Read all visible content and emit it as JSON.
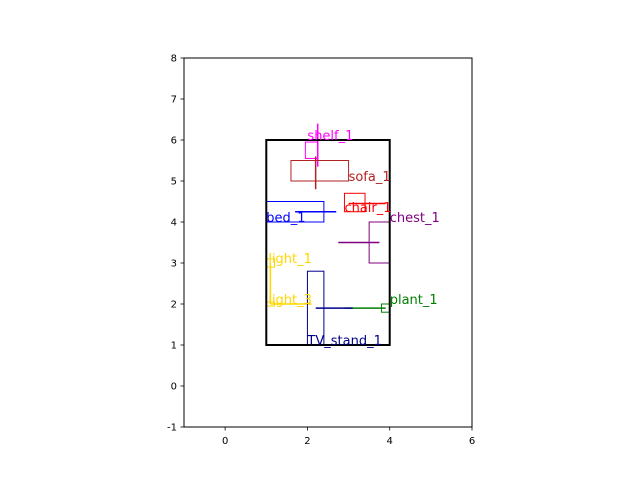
{
  "chart_data": {
    "type": "layout-plot",
    "xlim": [
      -1,
      6
    ],
    "ylim": [
      -1,
      8
    ],
    "x_ticks": [
      "0",
      "2",
      "4",
      "6"
    ],
    "x_tick_values": [
      0,
      2,
      4,
      6
    ],
    "y_ticks": [
      "-1",
      "0",
      "1",
      "2",
      "3",
      "4",
      "5",
      "6",
      "7",
      "8"
    ],
    "y_tick_values": [
      -1,
      0,
      1,
      2,
      3,
      4,
      5,
      6,
      7,
      8
    ],
    "room": {
      "x": 1,
      "y": 1,
      "w": 3,
      "h": 5,
      "color": "#000000"
    },
    "objects": [
      {
        "id": "shelf_1",
        "label": "shelf_1",
        "color": "#ff00ff",
        "rect": [
          1.95,
          5.55,
          0.3,
          0.4
        ],
        "line": [
          [
            2.25,
            6.4
          ],
          [
            2.25,
            5.35
          ]
        ],
        "label_at": [
          2.0,
          6.0
        ]
      },
      {
        "id": "sofa_1",
        "label": "sofa_1",
        "color": "#b22222",
        "rect": [
          1.6,
          5.0,
          1.4,
          0.5
        ],
        "line": [
          [
            2.2,
            5.6
          ],
          [
            2.2,
            4.8
          ]
        ],
        "label_at": [
          3.0,
          5.0
        ]
      },
      {
        "id": "chair_1",
        "label": "chair_1",
        "color": "#ff0000",
        "rect": [
          2.9,
          4.25,
          0.5,
          0.45
        ],
        "line": [
          [
            3.0,
            4.45
          ],
          [
            3.9,
            4.45
          ]
        ],
        "label_at": [
          2.9,
          4.25
        ]
      },
      {
        "id": "bed_1",
        "label": "bed_1",
        "color": "#0000ff",
        "rect": [
          1.0,
          4.0,
          1.4,
          0.5
        ],
        "line": [
          [
            1.7,
            4.25
          ],
          [
            2.7,
            4.25
          ]
        ],
        "label_at": [
          1.0,
          4.0
        ]
      },
      {
        "id": "chest_1",
        "label": "chest_1",
        "color": "#800080",
        "rect": [
          3.5,
          3.0,
          0.5,
          1.0
        ],
        "line": [
          [
            2.75,
            3.5
          ],
          [
            3.75,
            3.5
          ]
        ],
        "label_at": [
          4.0,
          4.0
        ]
      },
      {
        "id": "light_1",
        "label": "light_1",
        "color": "#ffd700",
        "rect": [
          1.0,
          2.9,
          0.2,
          0.2
        ],
        "line": [
          [
            1.1,
            3.0
          ],
          [
            1.1,
            2.0
          ]
        ],
        "label_at": [
          1.05,
          3.0
        ]
      },
      {
        "id": "light_3",
        "label": "light_3",
        "color": "#ffd700",
        "rect": [
          1.0,
          1.95,
          0.2,
          0.1
        ],
        "line": [
          [
            1.1,
            2.0
          ],
          [
            2.1,
            2.0
          ]
        ],
        "label_at": [
          1.05,
          2.0
        ]
      },
      {
        "id": "plant_1",
        "label": "plant_1",
        "color": "#008000",
        "rect": [
          3.8,
          1.8,
          0.2,
          0.2
        ],
        "line": [
          [
            2.9,
            1.9
          ],
          [
            3.9,
            1.9
          ]
        ],
        "label_at": [
          4.0,
          2.0
        ]
      },
      {
        "id": "TV_stand_1",
        "label": "TV_stand_1",
        "color": "#00008b",
        "rect": [
          2.0,
          1.0,
          0.4,
          1.8
        ],
        "line": [
          [
            2.2,
            1.9
          ],
          [
            3.1,
            1.9
          ]
        ],
        "label_at": [
          2.0,
          1.0
        ]
      }
    ]
  }
}
